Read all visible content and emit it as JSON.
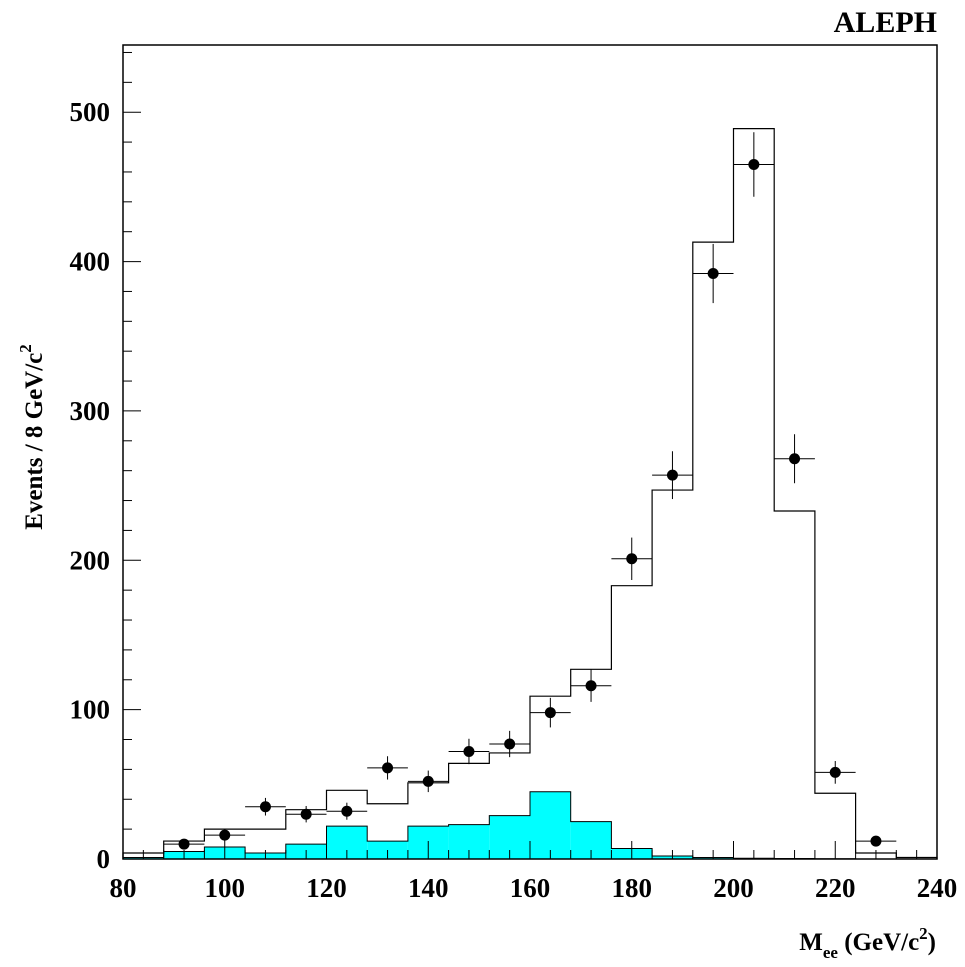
{
  "chart_data": {
    "type": "histogram",
    "experiment_label": "ALEPH",
    "xlabel": "M",
    "xlabel_subscript": "ee",
    "xlabel_units": " (GeV/c",
    "xlabel_units_sup": "2",
    "xlabel_units_end": ")",
    "ylabel": "Events / 8 GeV/c",
    "ylabel_sup": "2",
    "xlim": [
      80,
      240
    ],
    "ylim": [
      0,
      545
    ],
    "x_major_ticks": [
      80,
      100,
      120,
      140,
      160,
      180,
      200,
      220,
      240
    ],
    "x_tick_labels": [
      "80",
      "100",
      "120",
      "140",
      "160",
      "180",
      "200",
      "220",
      "240"
    ],
    "x_minor_step": 4,
    "y_major_ticks": [
      0,
      100,
      200,
      300,
      400,
      500
    ],
    "y_tick_labels": [
      "0",
      "100",
      "200",
      "300",
      "400",
      "500"
    ],
    "y_minor_step": 20,
    "bin_width": 8,
    "bin_edges": [
      80,
      88,
      96,
      104,
      112,
      120,
      128,
      136,
      144,
      152,
      160,
      168,
      176,
      184,
      192,
      200,
      208,
      216,
      224,
      232,
      240
    ],
    "series": [
      {
        "role": "mc_total",
        "style": "step",
        "color": "#000000",
        "values": [
          4,
          12,
          20,
          20,
          33,
          46,
          37,
          51,
          64,
          71,
          109,
          127,
          183,
          247,
          413,
          489,
          233,
          44,
          4,
          1
        ]
      },
      {
        "role": "background",
        "style": "filled",
        "color": "#00ffff",
        "values": [
          1,
          5,
          8,
          4,
          10,
          22,
          12,
          22,
          23,
          29,
          45,
          25,
          7,
          2,
          1,
          0.5,
          0.3,
          0.2,
          0,
          0
        ]
      },
      {
        "role": "data",
        "style": "points",
        "color": "#000000",
        "x": [
          92,
          100,
          108,
          116,
          124,
          132,
          140,
          148,
          156,
          164,
          172,
          180,
          188,
          196,
          204,
          212,
          220,
          228
        ],
        "y": [
          10,
          16,
          35,
          30,
          32,
          61,
          52,
          72,
          77,
          98,
          116,
          201,
          257,
          392,
          465,
          268,
          58,
          12
        ],
        "yerr": [
          3.2,
          4,
          5.9,
          5.5,
          5.7,
          7.8,
          7.2,
          8.5,
          8.8,
          9.9,
          10.8,
          14.2,
          16,
          19.8,
          21.6,
          16.4,
          7.6,
          3.5
        ]
      }
    ],
    "grid": false,
    "legend": "none"
  }
}
